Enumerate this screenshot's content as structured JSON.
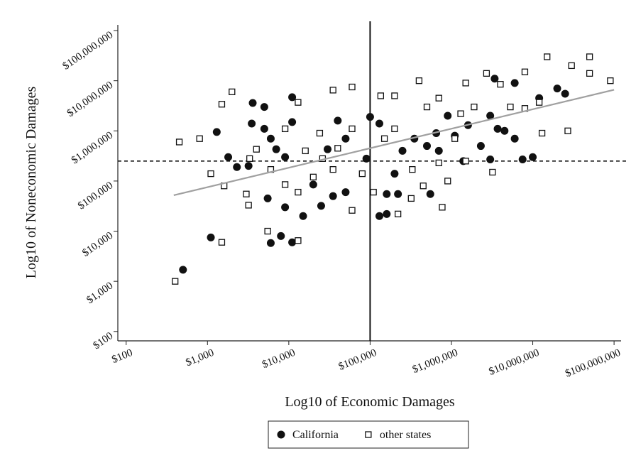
{
  "chart_data": {
    "type": "scatter",
    "x_label": "Log10 of Economic Damages",
    "y_label": "Log10 of Noneconomic Damages",
    "log_x": true,
    "log_y": true,
    "xlim": [
      79,
      122000000
    ],
    "ylim": [
      65,
      130000000
    ],
    "xticks": [
      {
        "value": 100,
        "label": "$100"
      },
      {
        "value": 1000,
        "label": "$1,000"
      },
      {
        "value": 10000,
        "label": "$10,000"
      },
      {
        "value": 100000,
        "label": "$100,000"
      },
      {
        "value": 1000000,
        "label": "$1,000,000"
      },
      {
        "value": 10000000,
        "label": "$10,000,000"
      },
      {
        "value": 100000000,
        "label": "$100,000,000"
      }
    ],
    "yticks": [
      {
        "value": 100,
        "label": "$100"
      },
      {
        "value": 1000,
        "label": "$1,000"
      },
      {
        "value": 10000,
        "label": "$10,000"
      },
      {
        "value": 100000,
        "label": "$100,000"
      },
      {
        "value": 1000000,
        "label": "$1,000,000"
      },
      {
        "value": 10000000,
        "label": "$10,000,000"
      },
      {
        "value": 100000000,
        "label": "$100,000,000"
      }
    ],
    "vline": 100000,
    "hline": 250000,
    "fit_line": {
      "color": "#a0a0a0",
      "x": [
        385,
        100000000
      ],
      "values": [
        52000,
        6600000
      ]
    },
    "legend": "bottom",
    "series": [
      {
        "name": "California",
        "color": "#111111",
        "marker": "circle",
        "x": [
          500,
          1100,
          1300,
          1800,
          3600,
          5000,
          3500,
          5000,
          11000,
          11000,
          6000,
          7000,
          9000,
          6000,
          8000,
          11000,
          9000,
          15000,
          5500,
          3200,
          2300,
          20000,
          25000,
          35000,
          50000,
          40000,
          50000,
          30000,
          90000,
          100000,
          130000,
          130000,
          160000,
          160000,
          200000,
          220000,
          550000,
          350000,
          500000,
          700000,
          650000,
          900000,
          1100000,
          1600000,
          2300000,
          3000000,
          3400000,
          3700000,
          4500000,
          6000000,
          6000000,
          7500000,
          10000000,
          12000000,
          20000000,
          25000000,
          1400000,
          3000000,
          250000
        ],
        "values": [
          1700,
          7500,
          950000,
          300000,
          3600000,
          3000000,
          1400000,
          1100000,
          4700000,
          1500000,
          700000,
          430000,
          300000,
          5800,
          8000,
          6000,
          30000,
          20000,
          45000,
          200000,
          190000,
          85000,
          32000,
          50000,
          60000,
          1600000,
          700000,
          430000,
          280000,
          1900000,
          1400000,
          20000,
          22000,
          55000,
          140000,
          55000,
          55000,
          700000,
          500000,
          400000,
          900000,
          2000000,
          800000,
          1300000,
          500000,
          2000000,
          11000000,
          1100000,
          1000000,
          700000,
          9000000,
          270000,
          300000,
          4500000,
          7000000,
          5500000,
          250000,
          270000,
          400000
        ]
      },
      {
        "name": "other states",
        "color": "#111111",
        "marker": "square",
        "x": [
          400,
          450,
          800,
          1100,
          1500,
          1500,
          2000,
          1600,
          3000,
          3200,
          5500,
          13000,
          13000,
          35000,
          60000,
          60000,
          110000,
          135000,
          200000,
          220000,
          320000,
          770000,
          400000,
          1500000,
          2700000,
          4000000,
          8000000,
          15000000,
          30000000,
          50000000,
          50000000,
          90000000,
          27000000,
          13000000,
          3200000,
          1500000,
          900000,
          450000,
          9000,
          13000,
          20000,
          35000,
          6000,
          4000,
          9000,
          24000,
          40000,
          60000,
          150000,
          200000,
          500000,
          700000,
          1300000,
          1900000,
          5300000,
          8000000,
          12000000,
          3300,
          16000,
          26000,
          80000,
          330000,
          700000,
          1100000
        ],
        "values": [
          1000,
          600000,
          700000,
          140000,
          6000,
          3400000,
          6000000,
          80000,
          55000,
          33000,
          10000,
          6500,
          3700000,
          6500000,
          7500000,
          26000,
          60000,
          5000000,
          5000000,
          22000,
          45000,
          30000,
          10000000,
          9000000,
          14000000,
          8500000,
          15000000,
          30000000,
          20000000,
          30000000,
          14000000,
          10000000,
          1000000,
          900000,
          150000,
          250000,
          100000,
          80000,
          85000,
          60000,
          120000,
          170000,
          170000,
          430000,
          1100000,
          900000,
          450000,
          1100000,
          700000,
          1100000,
          3000000,
          4500000,
          2200000,
          3000000,
          3000000,
          2800000,
          3700000,
          280000,
          400000,
          280000,
          140000,
          170000,
          230000,
          700000
        ]
      }
    ]
  }
}
